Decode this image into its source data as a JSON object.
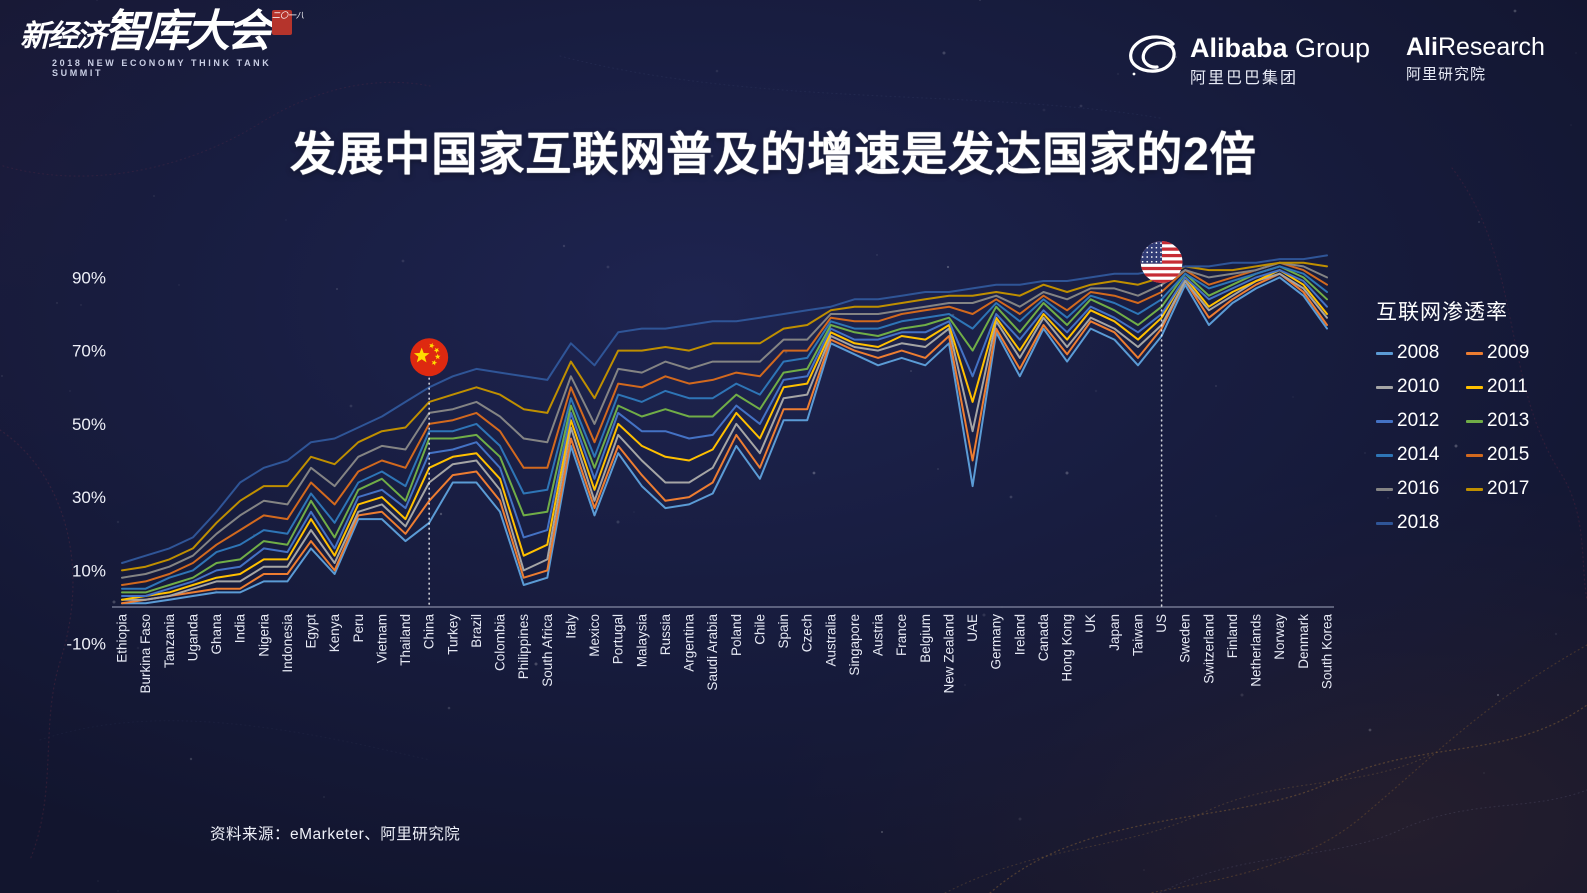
{
  "title": "发展中国家互联网普及的增速是发达国家的2倍",
  "source": "资料来源：eMarketer、阿里研究院",
  "legend": {
    "title": "互联网渗透率"
  },
  "header": {
    "summit": {
      "line1": "新经济",
      "line2": "智库大会",
      "subtitle": "2018 NEW ECONOMY THINK TANK SUMMIT",
      "seal": "二〇一八"
    },
    "alibaba": {
      "name": "Alibaba",
      "name_suffix": " Group",
      "cn": "阿里巴巴集团"
    },
    "aliresearch": {
      "name": "Ali",
      "name_suffix": "Research",
      "cn": "阿里研究院"
    }
  },
  "colors": {
    "background": "#171c3e",
    "axis": "#a8adc4",
    "china_flag_red": "#DE2910",
    "china_flag_yellow": "#FFDE00",
    "us_flag_red": "#C62C35",
    "us_flag_blue": "#313C76"
  },
  "chart_data": {
    "type": "line",
    "title": "发展中国家互联网普及的增速是发达国家的2倍",
    "xlabel": "",
    "ylabel": "互联网渗透率",
    "ylim": [
      -10,
      100
    ],
    "yticks": [
      "90%",
      "70%",
      "50%",
      "30%",
      "10%",
      "-10%"
    ],
    "ytick_values": [
      90,
      70,
      50,
      30,
      10,
      -10
    ],
    "grid": false,
    "legend_position": "right",
    "categories": [
      "Ethiopia",
      "Burkina Faso",
      "Tanzania",
      "Uganda",
      "Ghana",
      "India",
      "Nigeria",
      "Indonesia",
      "Egypt",
      "Kenya",
      "Peru",
      "Vietnam",
      "Thailand",
      "China",
      "Turkey",
      "Brazil",
      "Colombia",
      "Philippines",
      "South Africa",
      "Italy",
      "Mexico",
      "Portugal",
      "Malaysia",
      "Russia",
      "Argentina",
      "Saudi Arabia",
      "Poland",
      "Chile",
      "Spain",
      "Czech",
      "Australia",
      "Singapore",
      "Austria",
      "France",
      "Belgium",
      "New Zealand",
      "UAE",
      "Germany",
      "Ireland",
      "Canada",
      "Hong Kong",
      "UK",
      "Japan",
      "Taiwan",
      "US",
      "Sweden",
      "Switzerland",
      "Finland",
      "Netherlands",
      "Norway",
      "Denmark",
      "South Korea"
    ],
    "series": [
      {
        "name": "2008",
        "color": "#5B9BD5",
        "values": [
          1,
          1,
          2,
          3,
          4,
          4,
          7,
          7,
          16,
          9,
          24,
          24,
          18,
          23,
          34,
          34,
          26,
          6,
          8,
          44,
          25,
          42,
          33,
          27,
          28,
          31,
          44,
          35,
          51,
          51,
          72,
          69,
          66,
          68,
          66,
          72,
          33,
          75,
          63,
          76,
          67,
          76,
          73,
          66,
          74,
          88,
          77,
          83,
          87,
          90,
          85,
          76
        ]
      },
      {
        "name": "2009",
        "color": "#ED7D31",
        "values": [
          1,
          2,
          3,
          4,
          5,
          5,
          9,
          9,
          18,
          10,
          25,
          26,
          20,
          29,
          36,
          37,
          29,
          8,
          10,
          46,
          27,
          44,
          36,
          29,
          30,
          34,
          47,
          38,
          54,
          54,
          73,
          70,
          68,
          70,
          68,
          74,
          40,
          76,
          65,
          77,
          69,
          78,
          75,
          68,
          76,
          89,
          79,
          84,
          88,
          91,
          86,
          77
        ]
      },
      {
        "name": "2010",
        "color": "#A5A5A5",
        "values": [
          2,
          2,
          3,
          5,
          7,
          7,
          11,
          11,
          21,
          12,
          26,
          28,
          22,
          34,
          39,
          40,
          32,
          10,
          13,
          49,
          29,
          47,
          40,
          34,
          34,
          38,
          50,
          42,
          57,
          58,
          74,
          71,
          70,
          72,
          71,
          76,
          48,
          78,
          68,
          79,
          71,
          79,
          76,
          71,
          77,
          89,
          81,
          85,
          89,
          91,
          87,
          79
        ]
      },
      {
        "name": "2011",
        "color": "#FFC000",
        "values": [
          2,
          3,
          4,
          6,
          8,
          9,
          13,
          13,
          24,
          14,
          28,
          30,
          24,
          38,
          41,
          42,
          35,
          14,
          17,
          51,
          32,
          50,
          44,
          41,
          40,
          43,
          53,
          46,
          60,
          61,
          75,
          72,
          71,
          74,
          73,
          77,
          56,
          79,
          70,
          80,
          73,
          81,
          78,
          73,
          79,
          90,
          82,
          86,
          89,
          92,
          88,
          80
        ]
      },
      {
        "name": "2012",
        "color": "#4472C4",
        "values": [
          3,
          3,
          5,
          7,
          10,
          11,
          16,
          15,
          26,
          16,
          30,
          32,
          27,
          42,
          43,
          45,
          38,
          19,
          21,
          53,
          35,
          53,
          48,
          48,
          46,
          47,
          55,
          50,
          62,
          63,
          76,
          73,
          73,
          75,
          75,
          78,
          63,
          80,
          73,
          81,
          75,
          82,
          79,
          75,
          80,
          90,
          84,
          87,
          90,
          92,
          89,
          82
        ]
      },
      {
        "name": "2013",
        "color": "#70AD47",
        "values": [
          4,
          4,
          6,
          8,
          12,
          13,
          18,
          17,
          29,
          19,
          32,
          35,
          29,
          46,
          46,
          47,
          41,
          25,
          26,
          55,
          38,
          55,
          52,
          54,
          52,
          52,
          58,
          54,
          64,
          65,
          77,
          75,
          74,
          76,
          77,
          79,
          70,
          82,
          75,
          83,
          77,
          84,
          81,
          77,
          82,
          91,
          85,
          88,
          91,
          93,
          90,
          84
        ]
      },
      {
        "name": "2014",
        "color": "#2E75B6",
        "values": [
          5,
          5,
          8,
          10,
          15,
          17,
          21,
          20,
          31,
          23,
          34,
          37,
          33,
          48,
          48,
          50,
          44,
          31,
          32,
          57,
          41,
          58,
          56,
          59,
          57,
          57,
          61,
          58,
          67,
          68,
          78,
          76,
          76,
          78,
          79,
          80,
          76,
          83,
          78,
          84,
          79,
          85,
          83,
          80,
          84,
          91,
          87,
          89,
          91,
          93,
          91,
          86
        ]
      },
      {
        "name": "2015",
        "color": "#D2691E",
        "values": [
          6,
          7,
          9,
          12,
          17,
          21,
          25,
          24,
          34,
          28,
          37,
          40,
          38,
          50,
          51,
          53,
          48,
          38,
          38,
          60,
          45,
          61,
          60,
          63,
          61,
          62,
          64,
          63,
          70,
          70,
          79,
          78,
          78,
          80,
          81,
          82,
          80,
          84,
          80,
          85,
          81,
          86,
          85,
          83,
          86,
          92,
          88,
          90,
          92,
          94,
          92,
          88
        ]
      },
      {
        "name": "2016",
        "color": "#848484",
        "values": [
          8,
          9,
          11,
          14,
          20,
          25,
          29,
          28,
          38,
          33,
          41,
          44,
          43,
          53,
          54,
          56,
          52,
          46,
          45,
          63,
          50,
          65,
          64,
          67,
          65,
          67,
          67,
          67,
          73,
          73,
          80,
          80,
          80,
          81,
          82,
          83,
          83,
          85,
          82,
          86,
          84,
          87,
          87,
          85,
          88,
          92,
          90,
          91,
          92,
          94,
          93,
          90
        ]
      },
      {
        "name": "2017",
        "color": "#BF8F00",
        "values": [
          10,
          11,
          13,
          16,
          23,
          29,
          33,
          33,
          41,
          39,
          45,
          48,
          49,
          56,
          58,
          60,
          58,
          54,
          53,
          67,
          57,
          70,
          70,
          71,
          70,
          72,
          72,
          72,
          76,
          77,
          81,
          82,
          82,
          83,
          84,
          85,
          85,
          86,
          85,
          88,
          86,
          88,
          89,
          88,
          90,
          93,
          92,
          92,
          93,
          94,
          94,
          93
        ]
      },
      {
        "name": "2018",
        "color": "#2F5597",
        "values": [
          12,
          14,
          16,
          19,
          26,
          34,
          38,
          40,
          45,
          46,
          49,
          52,
          56,
          60,
          63,
          65,
          64,
          63,
          62,
          72,
          66,
          75,
          76,
          76,
          77,
          78,
          78,
          79,
          80,
          81,
          82,
          84,
          84,
          85,
          86,
          86,
          87,
          88,
          88,
          89,
          89,
          90,
          91,
          91,
          92,
          93,
          93,
          94,
          94,
          95,
          95,
          96
        ]
      }
    ],
    "annotations": [
      {
        "type": "flag-marker",
        "country": "China",
        "flag": "china"
      },
      {
        "type": "flag-marker",
        "country": "US",
        "flag": "usa"
      }
    ]
  }
}
